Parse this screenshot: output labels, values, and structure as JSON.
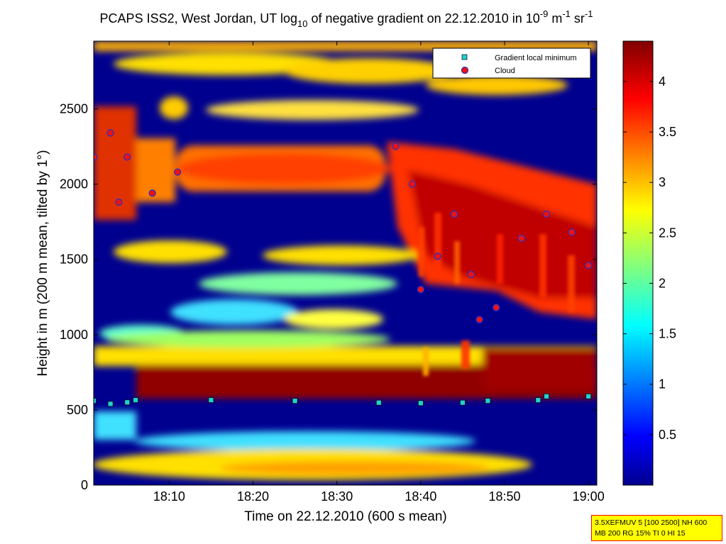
{
  "chart_data": {
    "type": "heatmap",
    "title_parts": {
      "prefix": "PCAPS ISS2, West Jordan, UT log",
      "sub": "10",
      "mid": " of negative gradient on 22.12.2010 in 10",
      "exp1": "-9",
      "unit1": " m",
      "exp2": "-1",
      "unit2": " sr",
      "exp3": "-1"
    },
    "xlabel": "Time on 22.12.2010 (600 s mean)",
    "ylabel": "Height in m (200 m mean, tilted by 1°)",
    "x_ticks": [
      "18:10",
      "18:20",
      "18:30",
      "18:40",
      "18:50",
      "19:00"
    ],
    "y_ticks": [
      "0",
      "500",
      "1000",
      "1500",
      "2000",
      "2500"
    ],
    "xlim": [
      "18:01",
      "19:01"
    ],
    "ylim": [
      0,
      2950
    ],
    "colorbar": {
      "ticks": [
        "0.5",
        "1",
        "1.5",
        "2",
        "2.5",
        "3",
        "3.5",
        "4"
      ],
      "range": [
        0,
        4.4
      ],
      "colormap": "jet"
    },
    "legend": {
      "position": "top-right",
      "entries": [
        {
          "label": "Gradient local minimum",
          "marker": "square",
          "color": "#22d0d0"
        },
        {
          "label": "Cloud",
          "marker": "circle",
          "color": "#ee1111"
        }
      ]
    },
    "gradient_local_minimum": [
      {
        "time": "18:01",
        "height": 560
      },
      {
        "time": "18:03",
        "height": 540
      },
      {
        "time": "18:05",
        "height": 550
      },
      {
        "time": "18:06",
        "height": 565
      },
      {
        "time": "18:15",
        "height": 565
      },
      {
        "time": "18:25",
        "height": 560
      },
      {
        "time": "18:35",
        "height": 548
      },
      {
        "time": "18:40",
        "height": 545
      },
      {
        "time": "18:45",
        "height": 548
      },
      {
        "time": "18:48",
        "height": 560
      },
      {
        "time": "18:54",
        "height": 565
      },
      {
        "time": "18:55",
        "height": 590
      },
      {
        "time": "19:00",
        "height": 590
      }
    ],
    "cloud": [
      {
        "time": "18:01",
        "height": 2180
      },
      {
        "time": "18:03",
        "height": 2340
      },
      {
        "time": "18:04",
        "height": 1880
      },
      {
        "time": "18:05",
        "height": 2180
      },
      {
        "time": "18:08",
        "height": 1940
      },
      {
        "time": "18:11",
        "height": 2080
      },
      {
        "time": "18:37",
        "height": 2250
      },
      {
        "time": "18:39",
        "height": 2000
      },
      {
        "time": "18:40",
        "height": 1300
      },
      {
        "time": "18:42",
        "height": 1520
      },
      {
        "time": "18:44",
        "height": 1800
      },
      {
        "time": "18:46",
        "height": 1400
      },
      {
        "time": "18:47",
        "height": 1100
      },
      {
        "time": "18:49",
        "height": 1180
      },
      {
        "time": "18:52",
        "height": 1640
      },
      {
        "time": "18:55",
        "height": 1800
      },
      {
        "time": "18:58",
        "height": 1680
      },
      {
        "time": "19:00",
        "height": 1460
      }
    ]
  },
  "note_box": {
    "line1": "3.5XEFMUV 5 [100 2500] NH 600",
    "line2": "MB 200 RG 15% TI 0 HI 15"
  }
}
